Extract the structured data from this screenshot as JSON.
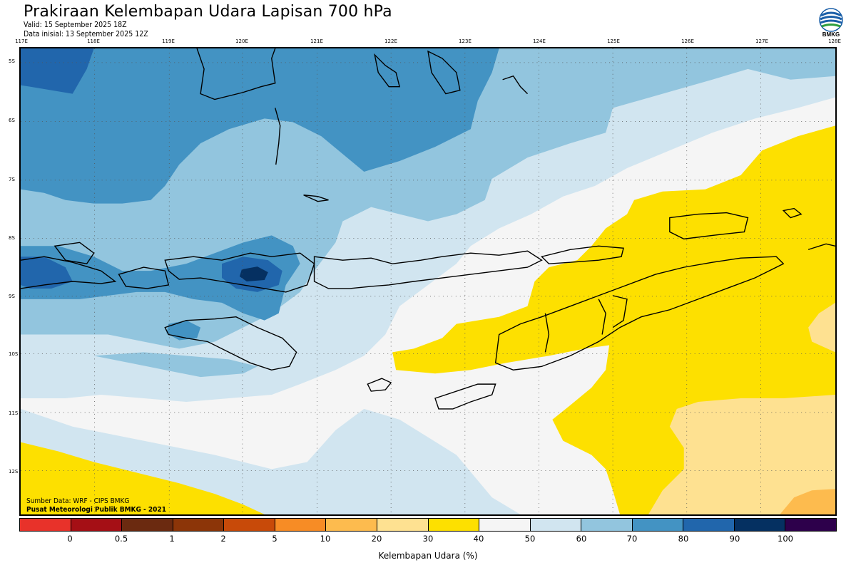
{
  "header": {
    "title": "Prakiraan Kelembapan Udara Lapisan 700 hPa",
    "valid": "Valid: 15 September 2025 18Z",
    "initial": "Data inisial: 13 September 2025 12Z"
  },
  "logo": {
    "text": "BMKG",
    "icon": "bmkg-logo-icon"
  },
  "map": {
    "lon_labels": [
      "117E",
      "118E",
      "119E",
      "120E",
      "121E",
      "122E",
      "123E",
      "124E",
      "125E",
      "126E",
      "127E",
      "128E"
    ],
    "lat_labels": [
      "5S",
      "6S",
      "7S",
      "8S",
      "9S",
      "10S",
      "11S",
      "12S"
    ],
    "grid": true,
    "colors": {
      "land_outline": "#000000",
      "grid": "#555555"
    }
  },
  "credits": {
    "source": "Sumber Data: WRF - CIPS BMKG",
    "org": "Pusat Meteorologi Publik BMKG - 2021"
  },
  "colorbar": {
    "label": "Kelembapan Udara (%)",
    "ticks": [
      "0",
      "0.5",
      "1",
      "2",
      "5",
      "10",
      "20",
      "30",
      "40",
      "50",
      "60",
      "70",
      "80",
      "90",
      "100"
    ],
    "colors": [
      "#e8322a",
      "#a50f15",
      "#6b2a10",
      "#8c3508",
      "#c84a09",
      "#f78c25",
      "#fdbb4e",
      "#fee191",
      "#fde000",
      "#f5f5f5",
      "#d1e5f0",
      "#92c5de",
      "#4393c3",
      "#2166ac",
      "#053061",
      "#2d004b"
    ]
  }
}
